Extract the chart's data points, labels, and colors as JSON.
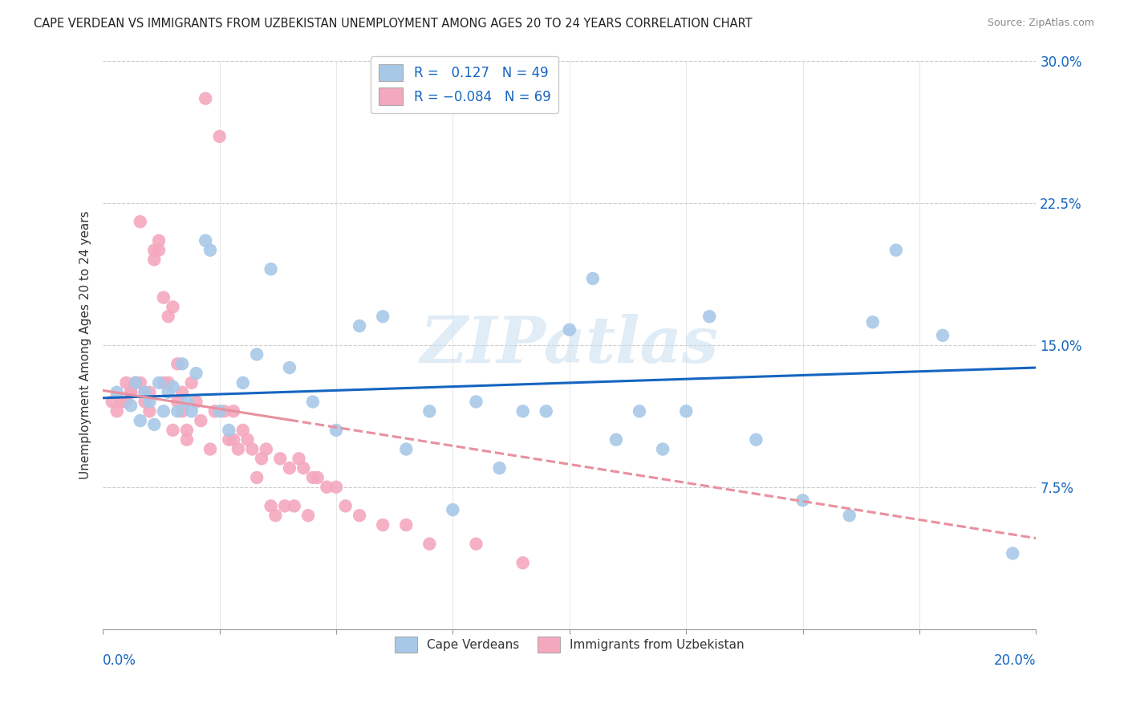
{
  "title": "CAPE VERDEAN VS IMMIGRANTS FROM UZBEKISTAN UNEMPLOYMENT AMONG AGES 20 TO 24 YEARS CORRELATION CHART",
  "source": "Source: ZipAtlas.com",
  "ylabel": "Unemployment Among Ages 20 to 24 years",
  "xmin": 0.0,
  "xmax": 0.2,
  "ymin": 0.0,
  "ymax": 0.3,
  "yticks": [
    0.0,
    0.075,
    0.15,
    0.225,
    0.3
  ],
  "ytick_labels": [
    "",
    "7.5%",
    "15.0%",
    "22.5%",
    "30.0%"
  ],
  "xticks": [
    0.0,
    0.025,
    0.05,
    0.075,
    0.1,
    0.125,
    0.15,
    0.175,
    0.2
  ],
  "blue_R": 0.127,
  "blue_N": 49,
  "pink_R": -0.084,
  "pink_N": 69,
  "blue_color": "#a8c8e8",
  "pink_color": "#f4a8be",
  "blue_line_color": "#1565c0",
  "pink_line_color": "#e8909e",
  "legend_label_blue": "Cape Verdeans",
  "legend_label_pink": "Immigrants from Uzbekistan",
  "watermark": "ZIPatlas",
  "blue_scatter_x": [
    0.003,
    0.006,
    0.007,
    0.008,
    0.009,
    0.01,
    0.011,
    0.012,
    0.013,
    0.014,
    0.015,
    0.016,
    0.017,
    0.018,
    0.019,
    0.02,
    0.022,
    0.023,
    0.025,
    0.027,
    0.03,
    0.033,
    0.036,
    0.04,
    0.045,
    0.05,
    0.055,
    0.06,
    0.065,
    0.07,
    0.075,
    0.08,
    0.085,
    0.09,
    0.095,
    0.1,
    0.105,
    0.11,
    0.115,
    0.12,
    0.125,
    0.13,
    0.14,
    0.15,
    0.16,
    0.165,
    0.17,
    0.18,
    0.195
  ],
  "blue_scatter_y": [
    0.125,
    0.118,
    0.13,
    0.11,
    0.125,
    0.12,
    0.108,
    0.13,
    0.115,
    0.125,
    0.128,
    0.115,
    0.14,
    0.12,
    0.115,
    0.135,
    0.205,
    0.2,
    0.115,
    0.105,
    0.13,
    0.145,
    0.19,
    0.138,
    0.12,
    0.105,
    0.16,
    0.165,
    0.095,
    0.115,
    0.063,
    0.12,
    0.085,
    0.115,
    0.115,
    0.158,
    0.185,
    0.1,
    0.115,
    0.095,
    0.115,
    0.165,
    0.1,
    0.068,
    0.06,
    0.162,
    0.2,
    0.155,
    0.04
  ],
  "pink_scatter_x": [
    0.002,
    0.003,
    0.004,
    0.005,
    0.005,
    0.006,
    0.006,
    0.007,
    0.007,
    0.008,
    0.008,
    0.009,
    0.009,
    0.01,
    0.01,
    0.011,
    0.011,
    0.012,
    0.012,
    0.013,
    0.013,
    0.014,
    0.014,
    0.015,
    0.015,
    0.016,
    0.016,
    0.017,
    0.017,
    0.018,
    0.018,
    0.019,
    0.02,
    0.021,
    0.022,
    0.023,
    0.024,
    0.025,
    0.026,
    0.027,
    0.028,
    0.028,
    0.029,
    0.03,
    0.031,
    0.032,
    0.033,
    0.034,
    0.035,
    0.036,
    0.037,
    0.038,
    0.039,
    0.04,
    0.041,
    0.042,
    0.043,
    0.044,
    0.045,
    0.046,
    0.048,
    0.05,
    0.052,
    0.055,
    0.06,
    0.065,
    0.07,
    0.08,
    0.09
  ],
  "pink_scatter_y": [
    0.12,
    0.115,
    0.12,
    0.12,
    0.13,
    0.125,
    0.125,
    0.13,
    0.13,
    0.13,
    0.215,
    0.125,
    0.12,
    0.125,
    0.115,
    0.2,
    0.195,
    0.205,
    0.2,
    0.175,
    0.13,
    0.165,
    0.13,
    0.105,
    0.17,
    0.12,
    0.14,
    0.115,
    0.125,
    0.1,
    0.105,
    0.13,
    0.12,
    0.11,
    0.28,
    0.095,
    0.115,
    0.26,
    0.115,
    0.1,
    0.115,
    0.1,
    0.095,
    0.105,
    0.1,
    0.095,
    0.08,
    0.09,
    0.095,
    0.065,
    0.06,
    0.09,
    0.065,
    0.085,
    0.065,
    0.09,
    0.085,
    0.06,
    0.08,
    0.08,
    0.075,
    0.075,
    0.065,
    0.06,
    0.055,
    0.055,
    0.045,
    0.045,
    0.035
  ],
  "blue_trend_x0": 0.0,
  "blue_trend_x1": 0.2,
  "blue_trend_y0": 0.122,
  "blue_trend_y1": 0.138,
  "pink_trend_x0": 0.0,
  "pink_trend_x1": 0.2,
  "pink_trend_y0": 0.126,
  "pink_trend_y1": 0.048
}
